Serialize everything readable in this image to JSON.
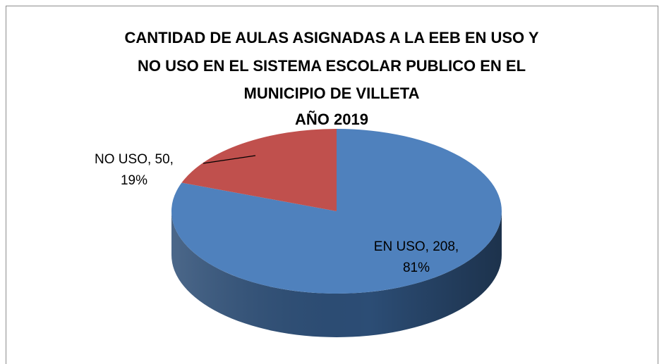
{
  "chart_data": {
    "type": "pie",
    "three_d": true,
    "title": [
      "CANTIDAD DE AULAS ASIGNADAS A LA EEB EN USO Y",
      "NO USO EN EL SISTEMA ESCOLAR PUBLICO EN EL",
      "MUNICIPIO DE VILLETA",
      "AÑO 2019"
    ],
    "categories": [
      "EN USO",
      "NO USO"
    ],
    "values": [
      208,
      50
    ],
    "value_labels": [
      [
        "EN USO, 208,",
        "81%"
      ],
      [
        "NO USO, 50,",
        "19%"
      ]
    ],
    "colors": [
      "#4f81bd",
      "#c0504d"
    ],
    "side_colors": [
      "#2c4d75",
      "#7a2f2d"
    ]
  }
}
